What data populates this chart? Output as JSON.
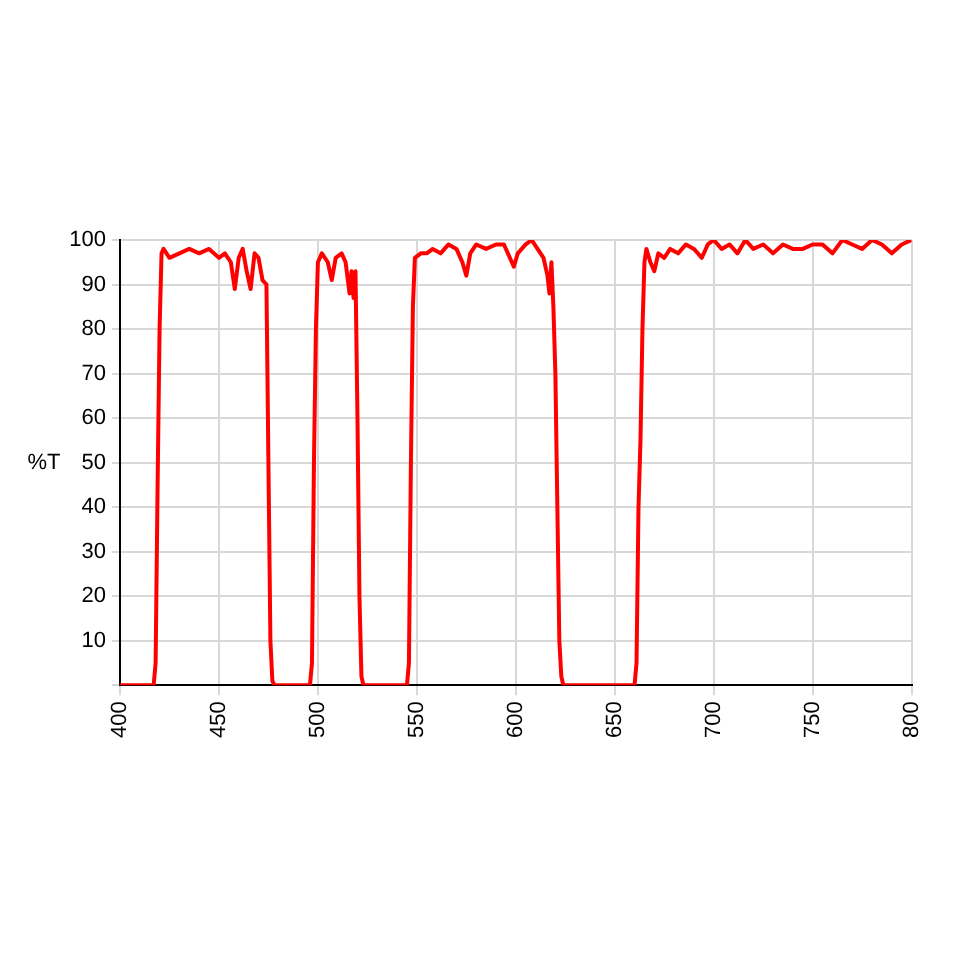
{
  "chart_data": {
    "type": "line",
    "ylabel": "%T",
    "xlim": [
      400,
      800
    ],
    "xticks": [
      400,
      450,
      500,
      550,
      600,
      650,
      700,
      750,
      800
    ],
    "ylim": [
      0,
      100
    ],
    "yticks": [
      {
        "value": 0,
        "label": null
      },
      10,
      20,
      30,
      40,
      50,
      60,
      70,
      80,
      90,
      100
    ],
    "grid": true,
    "legend": false,
    "series": [
      {
        "color": "#ff0000",
        "x": [
          400,
          417,
          418,
          419,
          420,
          421,
          422,
          425,
          430,
          435,
          440,
          445,
          450,
          453,
          456,
          458,
          460,
          462,
          464,
          466,
          468,
          470,
          472,
          474,
          475,
          476,
          477,
          478,
          496,
          497,
          498,
          499,
          500,
          502,
          505,
          507,
          509,
          512,
          514,
          516,
          517,
          518,
          519,
          520,
          521,
          522,
          523,
          545,
          546,
          547,
          548,
          549,
          552,
          555,
          558,
          562,
          566,
          570,
          573,
          575,
          577,
          580,
          585,
          590,
          594,
          597,
          599,
          601,
          605,
          608,
          611,
          614,
          616,
          617,
          618,
          619,
          620,
          621,
          622,
          623,
          624,
          660,
          661,
          662,
          663,
          664,
          665,
          666,
          668,
          670,
          672,
          675,
          678,
          682,
          686,
          690,
          694,
          697,
          700,
          704,
          708,
          712,
          716,
          720,
          725,
          730,
          735,
          740,
          745,
          750,
          755,
          760,
          765,
          770,
          775,
          780,
          785,
          790,
          795,
          800
        ],
        "values": [
          0,
          0,
          5,
          45,
          80,
          97,
          98,
          96,
          97,
          98,
          97,
          98,
          96,
          97,
          95,
          89,
          96,
          98,
          93,
          89,
          97,
          96,
          91,
          90,
          50,
          10,
          1,
          0,
          0,
          5,
          50,
          80,
          95,
          97,
          95,
          91,
          96,
          97,
          95,
          88,
          93,
          87,
          93,
          60,
          20,
          2,
          0,
          0,
          5,
          50,
          85,
          96,
          97,
          97,
          98,
          97,
          99,
          98,
          95,
          92,
          97,
          99,
          98,
          99,
          99,
          96,
          94,
          97,
          99,
          100,
          98,
          96,
          92,
          88,
          95,
          85,
          70,
          40,
          10,
          2,
          0,
          0,
          5,
          40,
          55,
          80,
          95,
          98,
          95,
          93,
          97,
          96,
          98,
          97,
          99,
          98,
          96,
          99,
          100,
          98,
          99,
          97,
          100,
          98,
          99,
          97,
          99,
          98,
          98,
          99,
          99,
          97,
          100,
          99,
          98,
          100,
          99,
          97,
          99,
          100
        ]
      }
    ]
  }
}
